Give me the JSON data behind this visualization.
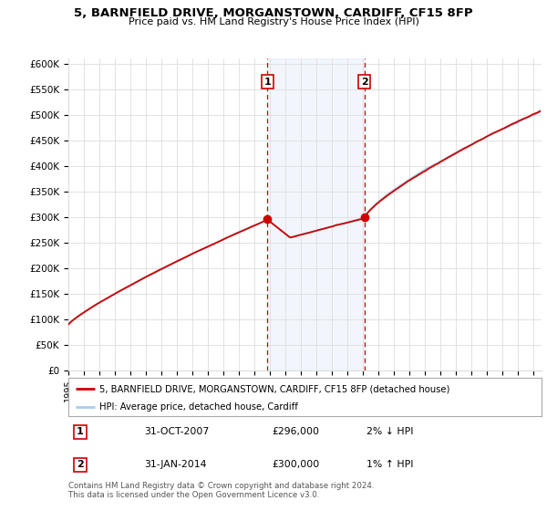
{
  "title": "5, BARNFIELD DRIVE, MORGANSTOWN, CARDIFF, CF15 8FP",
  "subtitle": "Price paid vs. HM Land Registry's House Price Index (HPI)",
  "ylabel_ticks": [
    "£0",
    "£50K",
    "£100K",
    "£150K",
    "£200K",
    "£250K",
    "£300K",
    "£350K",
    "£400K",
    "£450K",
    "£500K",
    "£550K",
    "£600K"
  ],
  "ytick_values": [
    0,
    50000,
    100000,
    150000,
    200000,
    250000,
    300000,
    350000,
    400000,
    450000,
    500000,
    550000,
    600000
  ],
  "ylim": [
    0,
    610000
  ],
  "xlim_start": 1995.0,
  "xlim_end": 2025.5,
  "transaction1": {
    "date_num": 2007.83,
    "price": 296000,
    "label": "1"
  },
  "transaction2": {
    "date_num": 2014.08,
    "price": 300000,
    "label": "2"
  },
  "shade_start": 2007.83,
  "shade_end": 2014.08,
  "line_color_property": "#cc0000",
  "line_color_hpi": "#aaccee",
  "legend_property": "5, BARNFIELD DRIVE, MORGANSTOWN, CARDIFF, CF15 8FP (detached house)",
  "legend_hpi": "HPI: Average price, detached house, Cardiff",
  "table_rows": [
    {
      "num": "1",
      "date": "31-OCT-2007",
      "price": "£296,000",
      "pct": "2% ↓ HPI"
    },
    {
      "num": "2",
      "date": "31-JAN-2014",
      "price": "£300,000",
      "pct": "1% ↑ HPI"
    }
  ],
  "footnote": "Contains HM Land Registry data © Crown copyright and database right 2024.\nThis data is licensed under the Open Government Licence v3.0.",
  "background_color": "#ffffff",
  "plot_bg_color": "#ffffff",
  "grid_color": "#dddddd",
  "box_color": "#cc0000"
}
